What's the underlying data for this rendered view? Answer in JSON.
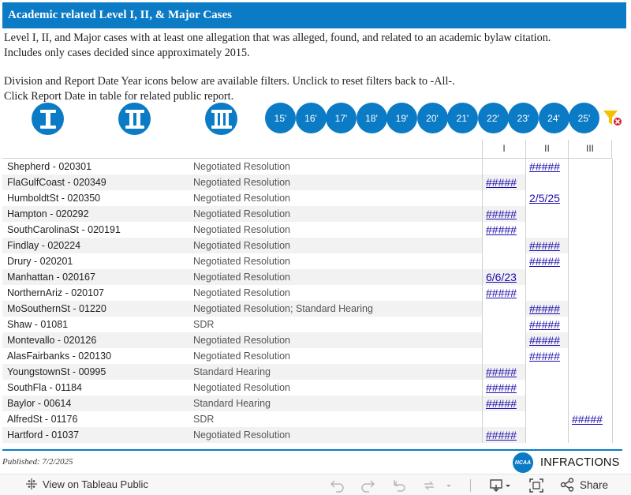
{
  "header": {
    "title": "Academic related Level I, II, & Major Cases"
  },
  "description": {
    "line1": "Level I, II, and Major cases with at least one allegation that was alleged, found, and related to an academic bylaw citation.",
    "line2": "Includes only cases decided since approximately 2015.",
    "line3": "Division and Report Date Year icons below are available filters. Unclick to reset filters back to -All-.",
    "line4": "Click Report Date in table for related public report."
  },
  "filters": {
    "divisions": [
      {
        "name": "division-i",
        "icon": "roman-numeral-one-icon"
      },
      {
        "name": "division-ii",
        "icon": "roman-numeral-two-icon"
      },
      {
        "name": "division-iii",
        "icon": "roman-numeral-three-icon"
      }
    ],
    "years": [
      "15'",
      "16'",
      "17'",
      "18'",
      "19'",
      "20'",
      "21'",
      "22'",
      "23'",
      "24'",
      "25'"
    ],
    "reset_icon": "clear-filter-icon"
  },
  "table": {
    "columns": [
      "I",
      "II",
      "III"
    ],
    "rows": [
      {
        "school": "Shepherd - 020301",
        "resolution": "Negotiated Resolution",
        "div": 2,
        "date": "#####"
      },
      {
        "school": "FlaGulfCoast - 020349",
        "resolution": "Negotiated Resolution",
        "div": 1,
        "date": "#####"
      },
      {
        "school": "HumboldtSt - 020350",
        "resolution": "Negotiated Resolution",
        "div": 2,
        "date": "2/5/25"
      },
      {
        "school": "Hampton - 020292",
        "resolution": "Negotiated Resolution",
        "div": 1,
        "date": "#####"
      },
      {
        "school": "SouthCarolinaSt - 020191",
        "resolution": "Negotiated Resolution",
        "div": 1,
        "date": "#####"
      },
      {
        "school": "Findlay - 020224",
        "resolution": "Negotiated Resolution",
        "div": 2,
        "date": "#####"
      },
      {
        "school": "Drury - 020201",
        "resolution": "Negotiated Resolution",
        "div": 2,
        "date": "#####"
      },
      {
        "school": "Manhattan - 020167",
        "resolution": "Negotiated Resolution",
        "div": 1,
        "date": "6/6/23"
      },
      {
        "school": "NorthernAriz - 020107",
        "resolution": "Negotiated Resolution",
        "div": 1,
        "date": "#####"
      },
      {
        "school": "MoSouthernSt - 01220",
        "resolution": "Negotiated Resolution; Standard Hearing",
        "div": 2,
        "date": "#####"
      },
      {
        "school": "Shaw - 01081",
        "resolution": "SDR",
        "div": 2,
        "date": "#####"
      },
      {
        "school": "Montevallo - 020126",
        "resolution": "Negotiated Resolution",
        "div": 2,
        "date": "#####"
      },
      {
        "school": "AlasFairbanks - 020130",
        "resolution": "Negotiated Resolution",
        "div": 2,
        "date": "#####"
      },
      {
        "school": "YoungstownSt - 00995",
        "resolution": "Standard Hearing",
        "div": 1,
        "date": "#####"
      },
      {
        "school": "SouthFla - 01184",
        "resolution": "Negotiated Resolution",
        "div": 1,
        "date": "#####"
      },
      {
        "school": "Baylor - 00614",
        "resolution": "Standard Hearing",
        "div": 1,
        "date": "#####"
      },
      {
        "school": "AlfredSt - 01176",
        "resolution": "SDR",
        "div": 3,
        "date": "#####"
      },
      {
        "school": "Hartford - 01037",
        "resolution": "Negotiated Resolution",
        "div": 1,
        "date": "#####"
      }
    ]
  },
  "footer": {
    "published": "Published:  7/2/2025",
    "brand_logo": "NCAA",
    "brand_word": "INFRACTIONS"
  },
  "toolbar": {
    "view_label": "View on Tableau Public",
    "share_label": "Share",
    "icons": [
      "undo-icon",
      "redo-icon",
      "revert-icon",
      "refresh-icon",
      "download-icon",
      "fullscreen-icon",
      "share-icon"
    ]
  },
  "colors": {
    "accent": "#0b7bc6",
    "link": "#1a0dab",
    "stripe": "#f2f2f2",
    "reset_badge": "#d61f26",
    "funnel": "#f2c200"
  }
}
